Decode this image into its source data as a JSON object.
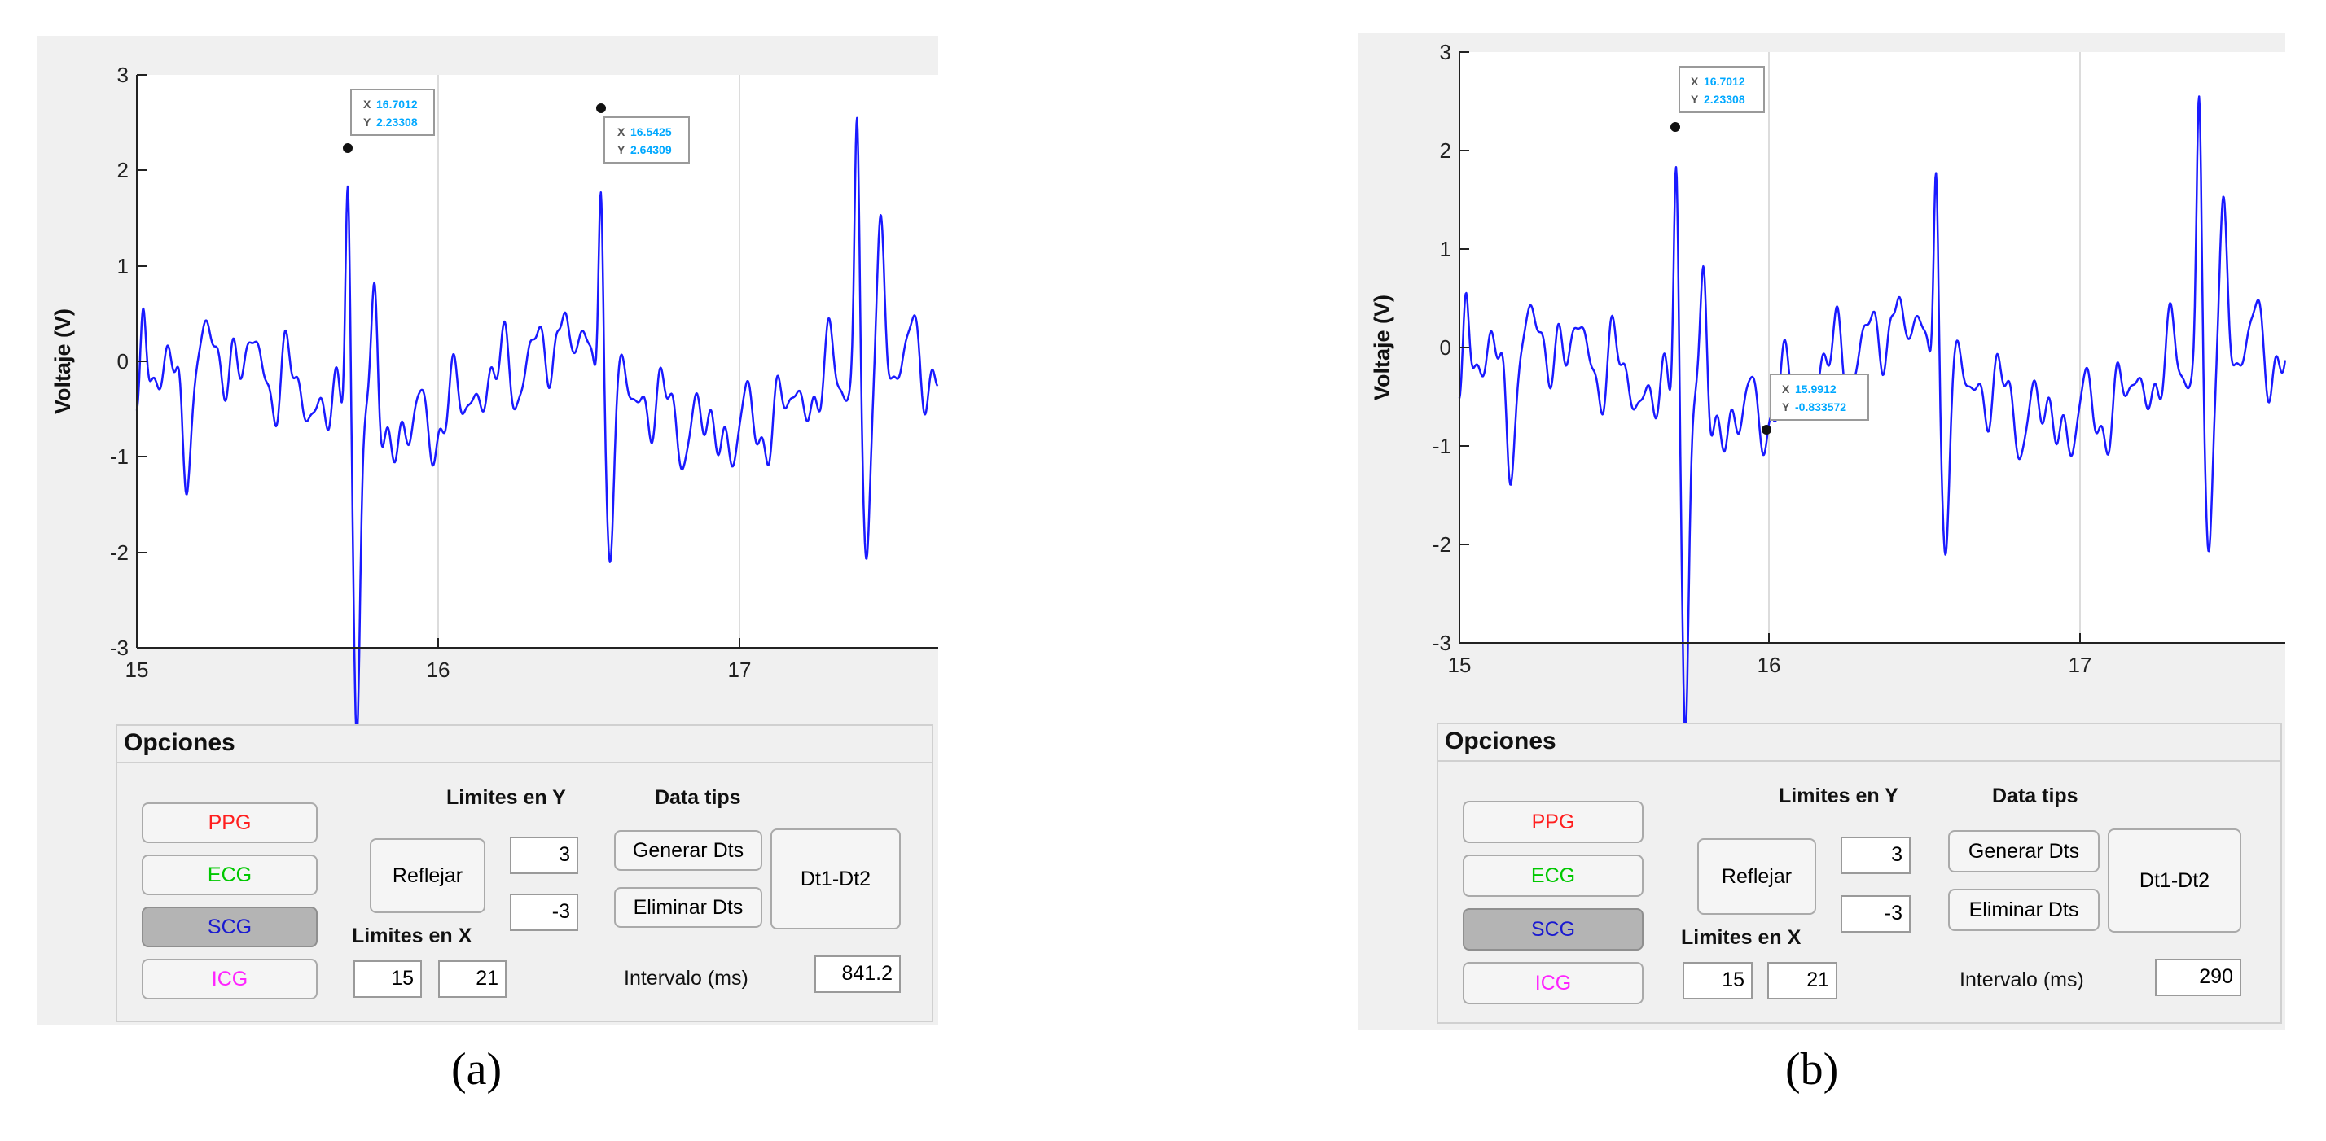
{
  "colors": {
    "signal": "#1a1aff",
    "ppg": "#ff1f1f",
    "ecg": "#00c800",
    "scg": "#1a1ad0",
    "icg": "#ff22ff",
    "datatip_label": "#555555",
    "datatip_value": "#00a8ff"
  },
  "captions": {
    "a": "(a)",
    "b": "(b)"
  },
  "panels": [
    {
      "plot": {
        "y_axis_label": "Voltaje (V)",
        "x_ticks": [
          "15",
          "16",
          "17"
        ],
        "y_ticks": [
          "3",
          "2",
          "1",
          "0",
          "-1",
          "-2",
          "-3"
        ],
        "datatips": [
          {
            "x_label": "X",
            "x_value": "16.7012",
            "y_label": "Y",
            "y_value": "2.23308"
          },
          {
            "x_label": "X",
            "x_value": "16.5425",
            "y_label": "Y",
            "y_value": "2.64309"
          }
        ]
      },
      "options": {
        "title": "Opciones",
        "signal_buttons": [
          "PPG",
          "ECG",
          "SCG",
          "ICG"
        ],
        "selected_signal": "SCG",
        "limits_y_label": "Limites en Y",
        "reflect_button": "Reflejar",
        "y_max": "3",
        "y_min": "-3",
        "limits_x_label": "Limites en X",
        "x_min": "15",
        "x_max": "21",
        "datatips_label": "Data tips",
        "generate_button": "Generar Dts",
        "delete_button": "Eliminar Dts",
        "diff_button": "Dt1-Dt2",
        "interval_label": "Intervalo (ms)",
        "interval_value": "841.2"
      }
    },
    {
      "plot": {
        "y_axis_label": "Voltaje (V)",
        "x_ticks": [
          "15",
          "16",
          "17"
        ],
        "y_ticks": [
          "3",
          "2",
          "1",
          "0",
          "-1",
          "-2",
          "-3"
        ],
        "datatips": [
          {
            "x_label": "X",
            "x_value": "16.7012",
            "y_label": "Y",
            "y_value": "2.23308"
          },
          {
            "x_label": "X",
            "x_value": "15.9912",
            "y_label": "Y",
            "y_value": "-0.833572"
          }
        ]
      },
      "options": {
        "title": "Opciones",
        "signal_buttons": [
          "PPG",
          "ECG",
          "SCG",
          "ICG"
        ],
        "selected_signal": "SCG",
        "limits_y_label": "Limites en Y",
        "reflect_button": "Reflejar",
        "y_max": "3",
        "y_min": "-3",
        "limits_x_label": "Limites en X",
        "x_min": "15",
        "x_max": "21",
        "datatips_label": "Data tips",
        "generate_button": "Generar Dts",
        "delete_button": "Eliminar Dts",
        "diff_button": "Dt1-Dt2",
        "interval_label": "Intervalo (ms)",
        "interval_value": "290"
      }
    }
  ]
}
